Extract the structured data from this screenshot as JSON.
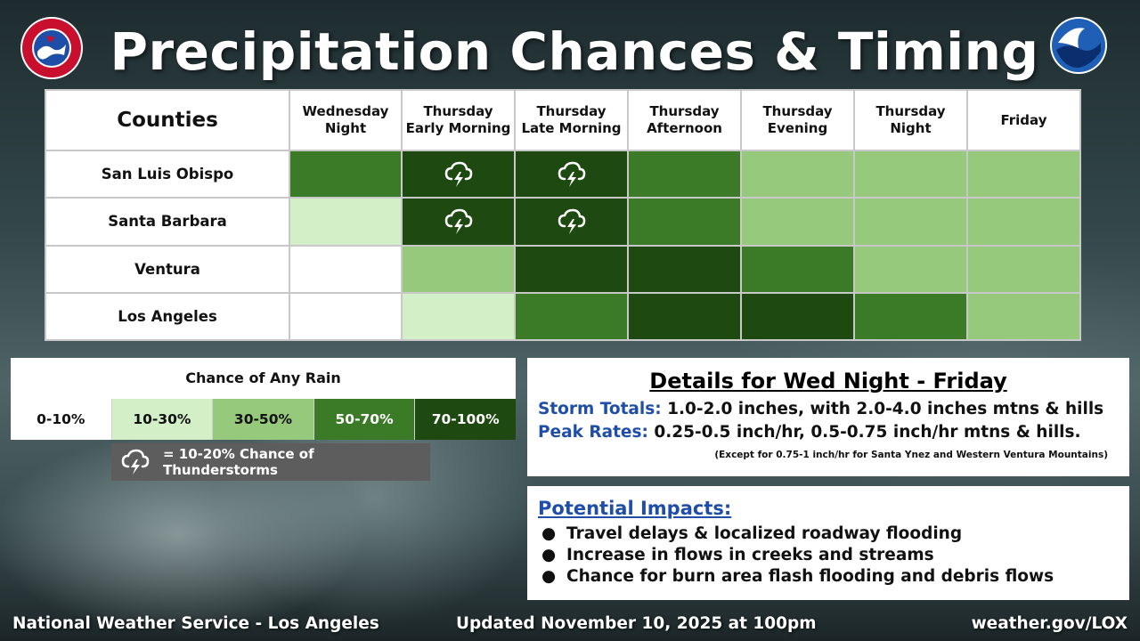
{
  "title": "Precipitation Chances & Timing",
  "logos": {
    "nws_logo_text": "NATIONAL WEATHER SERVICE",
    "noaa_logo_text": "NOAA"
  },
  "table": {
    "corner_header": "Counties",
    "periods": [
      [
        "Wednesday",
        "Night"
      ],
      [
        "Thursday",
        "Early Morning"
      ],
      [
        "Thursday",
        "Late Morning"
      ],
      [
        "Thursday",
        "Afternoon"
      ],
      [
        "Thursday",
        "Evening"
      ],
      [
        "Thursday",
        "Night"
      ],
      [
        "Friday"
      ]
    ],
    "rows": [
      {
        "county": "San Luis Obispo",
        "levels": [
          3,
          4,
          4,
          3,
          2,
          2,
          2
        ],
        "thunder": [
          false,
          true,
          true,
          false,
          false,
          false,
          false
        ]
      },
      {
        "county": "Santa Barbara",
        "levels": [
          1,
          4,
          4,
          3,
          2,
          2,
          2
        ],
        "thunder": [
          false,
          true,
          true,
          false,
          false,
          false,
          false
        ]
      },
      {
        "county": "Ventura",
        "levels": [
          0,
          2,
          4,
          4,
          3,
          2,
          2
        ],
        "thunder": [
          false,
          false,
          false,
          false,
          false,
          false,
          false
        ]
      },
      {
        "county": "Los Angeles",
        "levels": [
          0,
          1,
          3,
          4,
          4,
          3,
          2
        ],
        "thunder": [
          false,
          false,
          false,
          false,
          false,
          false,
          false
        ]
      }
    ]
  },
  "legend": {
    "title": "Chance of Any Rain",
    "levels": [
      {
        "label": "0-10%",
        "color": "#ffffff"
      },
      {
        "label": "10-30%",
        "color": "#d3efc8"
      },
      {
        "label": "30-50%",
        "color": "#97c97c"
      },
      {
        "label": "50-70%",
        "color": "#3b7a26"
      },
      {
        "label": "70-100%",
        "color": "#1e4a12"
      }
    ],
    "thunder_text": "= 10-20% Chance of Thunderstorms",
    "thunder_icon": "thunderstorm-cloud-icon"
  },
  "details": {
    "title": "Details for Wed Night - Friday",
    "storm_label": "Storm Totals:",
    "storm_text": "1.0-2.0 inches, with 2.0-4.0 inches mtns & hills",
    "peak_label": "Peak Rates:",
    "peak_text": "0.25-0.5 inch/hr, 0.5-0.75 inch/hr mtns & hills.",
    "note": "(Except for 0.75-1 inch/hr for Santa Ynez and Western Ventura Mountains)"
  },
  "impacts": {
    "title": "Potential Impacts:",
    "items": [
      "Travel delays & localized roadway flooding",
      "Increase in flows in creeks and streams",
      "Chance for burn area flash flooding and debris flows"
    ]
  },
  "footer": {
    "office": "National Weather Service - Los Angeles",
    "updated": "Updated November 10, 2025 at 100pm",
    "website": "weather.gov/LOX"
  },
  "colors": {
    "label_blue": "#1f4ea8"
  }
}
